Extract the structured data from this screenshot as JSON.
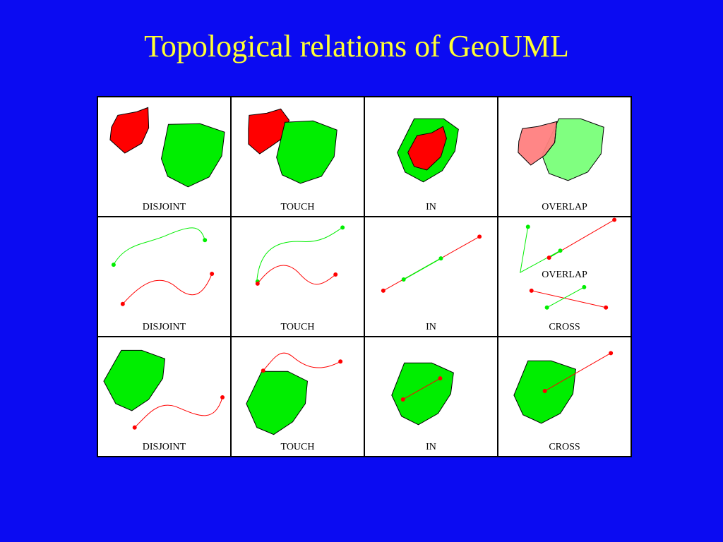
{
  "title": "Topological relations of GeoUML",
  "colors": {
    "background": "#0b0bf2",
    "title": "#ffff33",
    "green": "#00ee00",
    "red": "#ff0000",
    "light_green": "#80ff80",
    "light_red": "#ff8080"
  },
  "grid": {
    "rows": [
      {
        "row_type": "region-region",
        "cells": [
          {
            "label": "DISJOINT"
          },
          {
            "label": "TOUCH"
          },
          {
            "label": "IN"
          },
          {
            "label": "OVERLAP"
          }
        ]
      },
      {
        "row_type": "line-line",
        "cells": [
          {
            "label": "DISJOINT"
          },
          {
            "label": "TOUCH"
          },
          {
            "label": "IN"
          },
          {
            "label": "CROSS",
            "mid_label": "OVERLAP"
          }
        ]
      },
      {
        "row_type": "line-region",
        "cells": [
          {
            "label": "DISJOINT"
          },
          {
            "label": "TOUCH"
          },
          {
            "label": "IN"
          },
          {
            "label": "CROSS"
          }
        ]
      }
    ]
  }
}
